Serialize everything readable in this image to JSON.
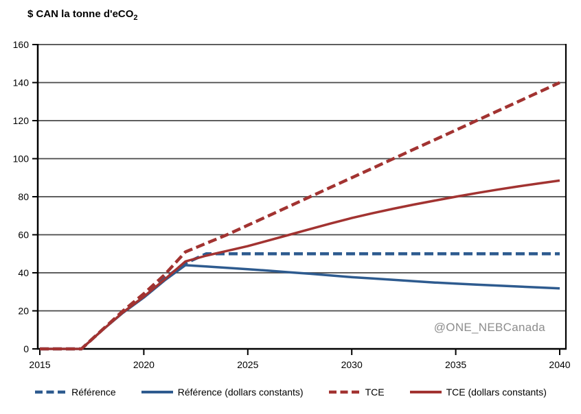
{
  "title": {
    "prefix": "$ CAN la tonne d'eCO",
    "sub": "2"
  },
  "watermark": "@ONE_NEBCanada",
  "colors": {
    "blue": "#2E5B8F",
    "red": "#A23331",
    "grid": "#474747",
    "axis": "#000000",
    "watermark": "#8C8C8C"
  },
  "chart_data": {
    "type": "line",
    "title": "$ CAN la tonne d'eCO2",
    "xlabel": "",
    "ylabel": "$ CAN la tonne d'eCO2",
    "ylim": [
      0,
      160
    ],
    "grid": true,
    "legend_position": "bottom",
    "x": [
      2015,
      2016,
      2017,
      2018,
      2019,
      2020,
      2021,
      2022,
      2023,
      2024,
      2025,
      2026,
      2027,
      2028,
      2029,
      2030,
      2031,
      2032,
      2033,
      2034,
      2035,
      2036,
      2037,
      2038,
      2039,
      2040
    ],
    "xticks": [
      2015,
      2020,
      2025,
      2030,
      2035,
      2040
    ],
    "yticks": [
      0,
      20,
      40,
      60,
      80,
      100,
      120,
      140,
      160
    ],
    "series": [
      {
        "id": "reference",
        "name": "Référence",
        "color": "#2E5B8F",
        "style": "dashed",
        "values": [
          0,
          0,
          0,
          10,
          19.5,
          28,
          37,
          45,
          50,
          50,
          50,
          50,
          50,
          50,
          50,
          50,
          50,
          50,
          50,
          50,
          50,
          50,
          50,
          50,
          50,
          50
        ]
      },
      {
        "id": "reference-constant",
        "name": "Référence (dollars constants)",
        "color": "#2E5B8F",
        "style": "solid",
        "values": [
          0,
          0,
          0,
          9.8,
          19,
          27,
          36,
          44,
          43.3,
          42.6,
          41.9,
          41.1,
          40.3,
          39.5,
          38.6,
          37.7,
          37,
          36.3,
          35.6,
          34.9,
          34.3,
          33.8,
          33.3,
          32.8,
          32.3,
          31.8
        ]
      },
      {
        "id": "tce",
        "name": "TCE",
        "color": "#A23331",
        "style": "dashed",
        "values": [
          0,
          0,
          0,
          10,
          20,
          29,
          39,
          51,
          55.5,
          60,
          65,
          70,
          75,
          80,
          85,
          90,
          95,
          100,
          105,
          110,
          115,
          120,
          125,
          130,
          135,
          140
        ]
      },
      {
        "id": "tce-constant",
        "name": "TCE (dollars constants)",
        "color": "#A23331",
        "style": "solid",
        "values": [
          0,
          0,
          0,
          9.8,
          19.2,
          27.5,
          36.5,
          46,
          49,
          51.5,
          54,
          57,
          60,
          63,
          66,
          68.8,
          71.3,
          73.7,
          75.9,
          78,
          80,
          81.9,
          83.7,
          85.4,
          87,
          88.5
        ]
      }
    ]
  }
}
